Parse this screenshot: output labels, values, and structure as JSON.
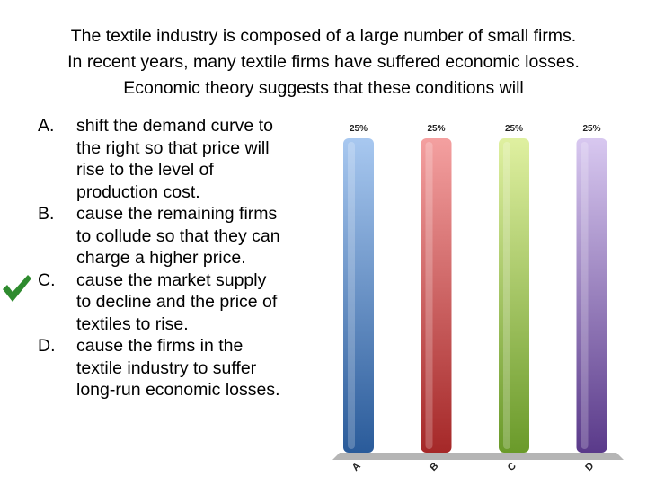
{
  "question": {
    "lines": [
      "The textile industry is composed of a large number of small firms.",
      "In recent years, many textile firms have suffered economic losses.",
      "Economic theory suggests that these conditions will"
    ]
  },
  "options": [
    {
      "letter": "A.",
      "lines": [
        "shift the demand curve to",
        "the right so that price will",
        "rise to the level of",
        "production cost."
      ]
    },
    {
      "letter": "B.",
      "lines": [
        "cause the remaining firms",
        "to collude so that they can",
        "charge a higher price."
      ]
    },
    {
      "letter": "C.",
      "lines": [
        "cause the market supply",
        "to decline and the price of",
        "textiles to rise."
      ]
    },
    {
      "letter": "D.",
      "lines": [
        "cause the firms in the",
        "textile industry to suffer",
        "long-run economic losses."
      ]
    }
  ],
  "correct_marker": {
    "icon": "checkmark-icon",
    "option": "C.",
    "color": "#2e8b2e"
  },
  "chart_data": {
    "type": "bar",
    "categories": [
      "A",
      "B",
      "C",
      "D"
    ],
    "values": [
      25,
      25,
      25,
      25
    ],
    "data_labels": [
      "25%",
      "25%",
      "25%",
      "25%"
    ],
    "ylim": [
      0,
      25
    ],
    "grid": false,
    "legend": "none",
    "colors": [
      {
        "light": "#a8c8f0",
        "dark": "#2a5b9a"
      },
      {
        "light": "#f4a0a0",
        "dark": "#a52828"
      },
      {
        "light": "#dff0a0",
        "dark": "#6a9a2a"
      },
      {
        "light": "#d8c8f0",
        "dark": "#5a3a8a"
      }
    ],
    "floor_color": "#b5b5b5"
  }
}
